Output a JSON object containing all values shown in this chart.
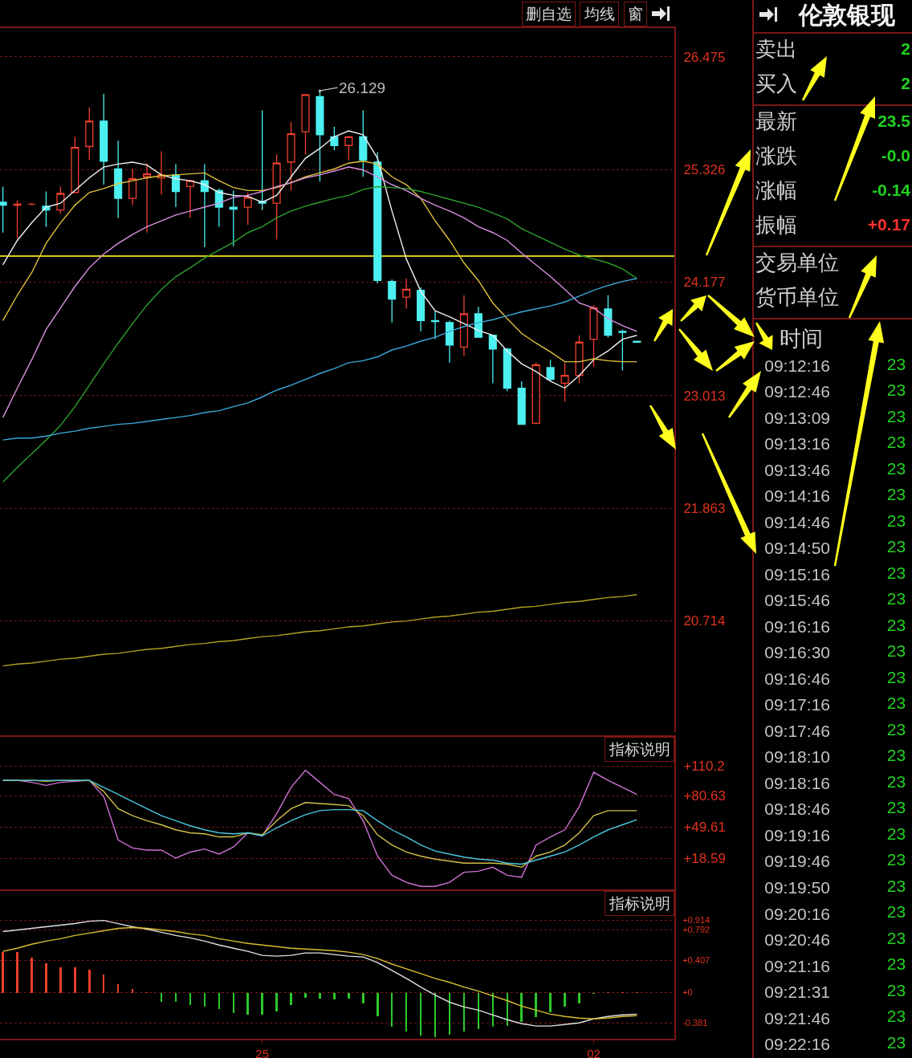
{
  "chart_data": [
    {
      "type": "candlestick",
      "categories": [
        null,
        null,
        null,
        null,
        null,
        null,
        null,
        null,
        null,
        null,
        null,
        null,
        null,
        null,
        null,
        null,
        null,
        null,
        null,
        null,
        null,
        null,
        null,
        null,
        null,
        null,
        null,
        null,
        null,
        null,
        null,
        null,
        null,
        null,
        null,
        null,
        null,
        null,
        null,
        null,
        null,
        null,
        null,
        null,
        null
      ],
      "ohlc": [
        [
          24.99,
          25.15,
          24.68,
          24.96
        ],
        [
          24.96,
          25.01,
          24.62,
          24.97
        ],
        [
          24.97,
          24.98,
          24.96,
          24.97
        ],
        [
          24.95,
          25.1,
          24.74,
          24.91
        ],
        [
          24.91,
          25.15,
          24.87,
          25.08
        ],
        [
          25.09,
          25.66,
          25.09,
          25.55
        ],
        [
          25.56,
          25.96,
          25.42,
          25.82
        ],
        [
          25.82,
          26.1,
          25.17,
          25.41
        ],
        [
          25.33,
          25.62,
          24.83,
          25.03
        ],
        [
          25.03,
          25.33,
          24.96,
          25.23
        ],
        [
          25.25,
          25.39,
          24.68,
          25.28
        ],
        [
          25.24,
          25.51,
          25.07,
          25.27
        ],
        [
          25.27,
          25.38,
          24.94,
          25.1
        ],
        [
          25.15,
          25.22,
          24.83,
          25.21
        ],
        [
          25.21,
          25.38,
          24.53,
          25.1
        ],
        [
          25.11,
          25.13,
          24.74,
          24.94
        ],
        [
          24.94,
          25.11,
          24.54,
          24.92
        ],
        [
          24.94,
          25.09,
          24.76,
          25.04
        ],
        [
          25.0,
          25.93,
          24.91,
          24.98
        ],
        [
          24.98,
          25.48,
          24.61,
          25.39
        ],
        [
          25.4,
          25.81,
          25.11,
          25.69
        ],
        [
          25.71,
          26.09,
          25.48,
          26.09
        ],
        [
          26.07,
          26.129,
          25.2,
          25.68
        ],
        [
          25.66,
          25.76,
          25.52,
          25.57
        ],
        [
          25.57,
          25.66,
          25.42,
          25.66
        ],
        [
          25.66,
          25.93,
          25.25,
          25.42
        ],
        [
          25.4,
          25.5,
          24.16,
          24.19
        ],
        [
          24.18,
          24.2,
          23.76,
          24.0
        ],
        [
          24.02,
          24.21,
          23.9,
          24.1
        ],
        [
          24.09,
          24.12,
          23.67,
          23.78
        ],
        [
          23.78,
          23.88,
          23.59,
          23.77
        ],
        [
          23.76,
          23.78,
          23.35,
          23.53
        ],
        [
          23.51,
          24.04,
          23.42,
          23.85
        ],
        [
          23.85,
          23.92,
          23.61,
          23.61
        ],
        [
          23.63,
          23.63,
          23.14,
          23.49
        ],
        [
          23.49,
          23.5,
          23.06,
          23.09
        ],
        [
          23.09,
          23.16,
          22.72,
          22.72
        ],
        [
          22.73,
          23.35,
          22.72,
          23.33
        ],
        [
          23.3,
          23.38,
          23.16,
          23.18
        ],
        [
          23.14,
          23.35,
          22.95,
          23.22
        ],
        [
          23.22,
          23.63,
          23.14,
          23.56
        ],
        [
          23.59,
          23.94,
          23.31,
          23.91
        ],
        [
          23.9,
          24.04,
          23.61,
          23.63
        ],
        [
          23.67,
          23.69,
          23.27,
          23.66
        ],
        [
          23.57,
          23.57,
          23.56,
          23.56
        ]
      ],
      "value_labels": [
        null,
        null,
        null,
        null,
        null,
        null,
        null,
        null,
        null,
        null,
        null,
        null,
        null,
        null,
        null,
        null,
        null,
        null,
        null,
        null,
        null,
        null,
        "26.129",
        null,
        null,
        null,
        null,
        null,
        null,
        null,
        null,
        null,
        null,
        null,
        null,
        null,
        null,
        null,
        null,
        null,
        null,
        null,
        null,
        null,
        null
      ],
      "colors": [
        "#4cf0f0",
        "#f0402c",
        "#f0402c",
        "#4cf0f0",
        "#f0402c",
        "#f0402c",
        "#f0402c",
        "#4cf0f0",
        "#4cf0f0",
        "#f0402c",
        "#f0402c",
        "#f0402c",
        "#4cf0f0",
        "#f0402c",
        "#4cf0f0",
        "#4cf0f0",
        "#4cf0f0",
        "#f0402c",
        "#4cf0f0",
        "#f0402c",
        "#f0402c",
        "#f0402c",
        "#4cf0f0",
        "#4cf0f0",
        "#f0402c",
        "#4cf0f0",
        "#4cf0f0",
        "#4cf0f0",
        "#f0402c",
        "#4cf0f0",
        "#4cf0f0",
        "#4cf0f0",
        "#f0402c",
        "#4cf0f0",
        "#4cf0f0",
        "#4cf0f0",
        "#4cf0f0",
        "#f0402c",
        "#4cf0f0",
        "#f0402c",
        "#f0402c",
        "#f0402c",
        "#4cf0f0",
        "#4cf0f0",
        "#4cf0f0"
      ],
      "series": [
        {
          "type": "line",
          "color": "#f0f0f0",
          "values": [
            24.35,
            24.6,
            24.78,
            24.94,
            24.98,
            25.11,
            25.24,
            25.35,
            25.38,
            25.4,
            25.37,
            25.27,
            25.23,
            25.21,
            25.17,
            25.09,
            25.06,
            25.05,
            24.99,
            25.06,
            25.25,
            25.44,
            25.54,
            25.66,
            25.72,
            25.68,
            25.44,
            24.9,
            24.41,
            24.08,
            23.88,
            23.82,
            23.75,
            23.68,
            23.63,
            23.47,
            23.34,
            23.26,
            23.16,
            23.09,
            23.22,
            23.38,
            23.47,
            23.59,
            23.63
          ]
        },
        {
          "type": "line",
          "color": "#e0c23c",
          "values": [
            23.78,
            24.04,
            24.27,
            24.57,
            24.78,
            24.96,
            25.09,
            25.13,
            25.18,
            25.21,
            25.24,
            25.26,
            25.27,
            25.28,
            25.29,
            25.21,
            25.14,
            25.11,
            25.11,
            25.14,
            25.19,
            25.25,
            25.29,
            25.33,
            25.39,
            25.41,
            25.38,
            25.25,
            25.17,
            25.03,
            24.8,
            24.6,
            24.37,
            24.19,
            23.96,
            23.8,
            23.65,
            23.55,
            23.46,
            23.36,
            23.36,
            23.39,
            23.37,
            23.36,
            23.36
          ]
        },
        {
          "type": "line",
          "color": "#d890e0",
          "values": [
            22.79,
            23.09,
            23.38,
            23.69,
            23.91,
            24.13,
            24.32,
            24.46,
            24.57,
            24.66,
            24.74,
            24.8,
            24.86,
            24.9,
            24.94,
            24.98,
            25.04,
            25.06,
            25.1,
            25.15,
            25.19,
            25.24,
            25.27,
            25.31,
            25.35,
            25.32,
            25.25,
            25.17,
            25.11,
            25.03,
            24.96,
            24.9,
            24.83,
            24.74,
            24.68,
            24.6,
            24.47,
            24.35,
            24.23,
            24.1,
            23.96,
            23.91,
            23.8,
            23.73,
            23.67
          ]
        },
        {
          "type": "line",
          "color": "#2ca02c",
          "values": [
            22.13,
            22.28,
            22.42,
            22.56,
            22.71,
            22.9,
            23.12,
            23.34,
            23.55,
            23.75,
            23.94,
            24.1,
            24.23,
            24.32,
            24.42,
            24.5,
            24.58,
            24.68,
            24.74,
            24.83,
            24.9,
            24.95,
            24.99,
            25.03,
            25.06,
            25.12,
            25.15,
            25.14,
            25.13,
            25.1,
            25.06,
            25.02,
            24.98,
            24.94,
            24.88,
            24.82,
            24.72,
            24.65,
            24.58,
            24.51,
            24.45,
            24.41,
            24.37,
            24.31,
            24.21
          ]
        },
        {
          "type": "line",
          "color": "#3aa8d8",
          "values": [
            22.56,
            22.58,
            22.58,
            22.6,
            22.63,
            22.65,
            22.68,
            22.7,
            22.72,
            22.73,
            22.75,
            22.77,
            22.79,
            22.81,
            22.84,
            22.86,
            22.9,
            22.94,
            23.0,
            23.07,
            23.12,
            23.18,
            23.24,
            23.29,
            23.35,
            23.37,
            23.41,
            23.48,
            23.52,
            23.57,
            23.61,
            23.67,
            23.72,
            23.76,
            23.79,
            23.83,
            23.87,
            23.9,
            23.93,
            23.97,
            24.03,
            24.09,
            24.14,
            24.18,
            24.21
          ]
        },
        {
          "type": "line",
          "color": "#b0a020",
          "values": [
            20.25,
            20.27,
            20.28,
            20.3,
            20.32,
            20.33,
            20.35,
            20.37,
            20.38,
            20.4,
            20.42,
            20.43,
            20.45,
            20.47,
            20.48,
            20.5,
            20.51,
            20.53,
            20.55,
            20.56,
            20.58,
            20.6,
            20.61,
            20.63,
            20.65,
            20.66,
            20.68,
            20.7,
            20.71,
            20.73,
            20.75,
            20.76,
            20.78,
            20.8,
            20.81,
            20.83,
            20.85,
            20.86,
            20.88,
            20.9,
            20.91,
            20.93,
            20.95,
            20.96,
            20.98
          ]
        }
      ],
      "ylim": [
        19.55,
        26.77
      ],
      "yticks": [
        20.714,
        21.863,
        23.013,
        24.177,
        25.326,
        26.475
      ],
      "grid": "y",
      "tick_labels": "y",
      "ref_lines": [
        {
          "axis": "y",
          "value": 24.44,
          "color": "#d8c81c"
        }
      ],
      "annotations": [
        "删自选",
        "均线",
        "窗"
      ]
    },
    {
      "type": "line",
      "categories": [
        null,
        null,
        null,
        null,
        null,
        null,
        null,
        null,
        null,
        null,
        null,
        null,
        null,
        null,
        null,
        null,
        null,
        null,
        null,
        null,
        null,
        null,
        null,
        null,
        null,
        null,
        null,
        null,
        null,
        null,
        null,
        null,
        null,
        null,
        null,
        null,
        null,
        null,
        null,
        null,
        null,
        null,
        null,
        null,
        null
      ],
      "series": [
        {
          "color": "#d070d8",
          "values": [
            96,
            96,
            94,
            91,
            94,
            95,
            96,
            80,
            37,
            29,
            27,
            27,
            19,
            25,
            28,
            23,
            30,
            44,
            41,
            63,
            89,
            106,
            94,
            82,
            78,
            56,
            21,
            2,
            -5,
            -9,
            -9,
            -5,
            5,
            6,
            10,
            2,
            0,
            32,
            40,
            47,
            70,
            104,
            96,
            89,
            82
          ]
        },
        {
          "color": "#d0c048",
          "values": [
            96,
            96,
            96,
            95,
            96,
            96,
            96,
            85,
            68,
            61,
            56,
            52,
            47,
            44,
            43,
            40,
            40,
            44,
            42,
            56,
            68,
            74,
            73,
            72,
            71,
            61,
            42,
            32,
            25,
            21,
            18,
            16,
            14,
            14,
            14,
            13,
            10,
            21,
            25,
            32,
            44,
            61,
            66,
            66,
            66
          ]
        },
        {
          "color": "#48c8e0",
          "values": [
            96,
            96,
            96,
            96,
            96,
            96,
            96,
            89,
            82,
            75,
            68,
            61,
            56,
            51,
            47,
            44,
            43,
            44,
            41,
            49,
            56,
            62,
            66,
            67,
            67,
            66,
            56,
            47,
            40,
            32,
            26,
            23,
            20,
            18,
            17,
            14,
            13,
            17,
            21,
            25,
            32,
            40,
            47,
            52,
            57
          ]
        }
      ],
      "ylim": [
        -12,
        139
      ],
      "yticks": [
        {
          "value": 18.59,
          "label": "+18.59"
        },
        {
          "value": 49.61,
          "label": "+49.61"
        },
        {
          "value": 80.63,
          "label": "+80.63"
        },
        {
          "value": 110.2,
          "label": "+110.2"
        }
      ],
      "grid": "y",
      "tick_labels": "y",
      "annotations": [
        "指标说明"
      ]
    },
    {
      "type": "bar",
      "categories": [
        null,
        null,
        null,
        null,
        null,
        null,
        null,
        null,
        null,
        null,
        null,
        null,
        null,
        null,
        null,
        null,
        null,
        null,
        "25",
        null,
        null,
        null,
        null,
        null,
        null,
        null,
        null,
        null,
        null,
        null,
        null,
        null,
        null,
        null,
        null,
        null,
        null,
        null,
        null,
        null,
        null,
        "02",
        null,
        null,
        null
      ],
      "series": [
        {
          "colors": [
            "#e8402c",
            "#e8402c",
            "#e8402c",
            "#e8402c",
            "#e8402c",
            "#e8402c",
            "#e8402c",
            "#e8402c",
            "#e8402c",
            "#e8402c",
            "#e8402c",
            "#2cc82c",
            "#2cc82c",
            "#2cc82c",
            "#2cc82c",
            "#2cc82c",
            "#2cc82c",
            "#2cc82c",
            "#2cc82c",
            "#2cc82c",
            "#2cc82c",
            "#2cc82c",
            "#2cc82c",
            "#2cc82c",
            "#2cc82c",
            "#2cc82c",
            "#2cc82c",
            "#2cc82c",
            "#2cc82c",
            "#2cc82c",
            "#2cc82c",
            "#2cc82c",
            "#2cc82c",
            "#2cc82c",
            "#2cc82c",
            "#2cc82c",
            "#2cc82c",
            "#2cc82c",
            "#2cc82c",
            "#2cc82c",
            "#2cc82c",
            "#2cc82c",
            "#e8402c",
            "#e8402c",
            "#e8402c"
          ],
          "values": [
            0.51,
            0.51,
            0.44,
            0.37,
            0.32,
            0.32,
            0.29,
            0.23,
            0.11,
            0.05,
            0.01,
            -0.11,
            -0.12,
            -0.16,
            -0.18,
            -0.21,
            -0.26,
            -0.28,
            -0.28,
            -0.24,
            -0.16,
            -0.06,
            -0.07,
            -0.08,
            -0.07,
            -0.14,
            -0.3,
            -0.43,
            -0.49,
            -0.54,
            -0.56,
            -0.53,
            -0.49,
            -0.46,
            -0.43,
            -0.42,
            -0.37,
            -0.31,
            -0.25,
            -0.18,
            -0.14,
            -0.01,
            0.01,
            0.01,
            0.01
          ]
        },
        {
          "type": "line",
          "color": "#e0e0e0",
          "values": [
            0.77,
            0.79,
            0.81,
            0.83,
            0.85,
            0.87,
            0.9,
            0.91,
            0.87,
            0.83,
            0.8,
            0.76,
            0.72,
            0.69,
            0.65,
            0.6,
            0.56,
            0.52,
            0.47,
            0.46,
            0.47,
            0.5,
            0.5,
            0.48,
            0.46,
            0.45,
            0.38,
            0.28,
            0.18,
            0.07,
            -0.03,
            -0.12,
            -0.18,
            -0.22,
            -0.28,
            -0.34,
            -0.39,
            -0.42,
            -0.42,
            -0.4,
            -0.38,
            -0.33,
            -0.3,
            -0.28,
            -0.27
          ]
        },
        {
          "type": "line",
          "color": "#d8c030",
          "values": [
            0.52,
            0.56,
            0.61,
            0.65,
            0.68,
            0.72,
            0.75,
            0.78,
            0.81,
            0.82,
            0.81,
            0.79,
            0.77,
            0.74,
            0.72,
            0.68,
            0.65,
            0.62,
            0.6,
            0.58,
            0.56,
            0.55,
            0.54,
            0.53,
            0.51,
            0.48,
            0.43,
            0.36,
            0.3,
            0.24,
            0.18,
            0.13,
            0.07,
            0.02,
            -0.04,
            -0.1,
            -0.17,
            -0.22,
            -0.27,
            -0.3,
            -0.32,
            -0.33,
            -0.32,
            -0.3,
            -0.29
          ]
        }
      ],
      "ylim": [
        -0.58,
        1.28
      ],
      "yticks": [
        -0.381,
        {
          "value": 0,
          "label": "+0"
        },
        {
          "value": 0.407,
          "label": "+0.407"
        },
        {
          "value": 0.792,
          "label": "+0.792"
        },
        {
          "value": 0.914,
          "label": "+0.914"
        }
      ],
      "grid": "y",
      "annotations": [
        "指标说明"
      ]
    },
    {
      "type": "other",
      "title": "伦敦银现",
      "categories": [
        "卖出",
        "买入",
        "最新",
        "涨跌",
        "涨幅",
        "振幅",
        "交易单位",
        "货币单位"
      ],
      "value_labels": [
        "2",
        "2",
        "23.5",
        "-0.0",
        "-0.14",
        "+0.17",
        null,
        null
      ],
      "colors": [
        "#22d022",
        "#22d022",
        "#22d022",
        "#22d022",
        "#22d022",
        "#ff3030",
        null,
        null
      ]
    },
    {
      "type": "heatmap",
      "ylabel": "时间",
      "categories": [
        null
      ],
      "y_categories": [
        "09:12:16",
        "09:12:46",
        "09:13:09",
        "09:13:16",
        "09:13:46",
        "09:14:16",
        "09:14:46",
        "09:14:50",
        "09:15:16",
        "09:15:46",
        "09:16:16",
        "09:16:30",
        "09:16:46",
        "09:17:16",
        "09:17:46",
        "09:18:10",
        "09:18:16",
        "09:18:46",
        "09:19:16",
        "09:19:46",
        "09:19:50",
        "09:20:16",
        "09:20:46",
        "09:21:16",
        "09:21:31",
        "09:21:46",
        "09:22:16"
      ],
      "cells": [
        [
          23
        ],
        [
          23
        ],
        [
          23
        ],
        [
          23
        ],
        [
          23
        ],
        [
          23
        ],
        [
          23
        ],
        [
          23
        ],
        [
          23
        ],
        [
          23
        ],
        [
          23
        ],
        [
          23
        ],
        [
          23
        ],
        [
          23
        ],
        [
          23
        ],
        [
          23
        ],
        [
          23
        ],
        [
          23
        ],
        [
          23
        ],
        [
          23
        ],
        [
          23
        ],
        [
          23
        ],
        [
          23
        ],
        [
          23
        ],
        [
          23
        ],
        [
          23
        ],
        [
          23
        ]
      ],
      "data_labels": true,
      "tick_labels": "y"
    }
  ]
}
